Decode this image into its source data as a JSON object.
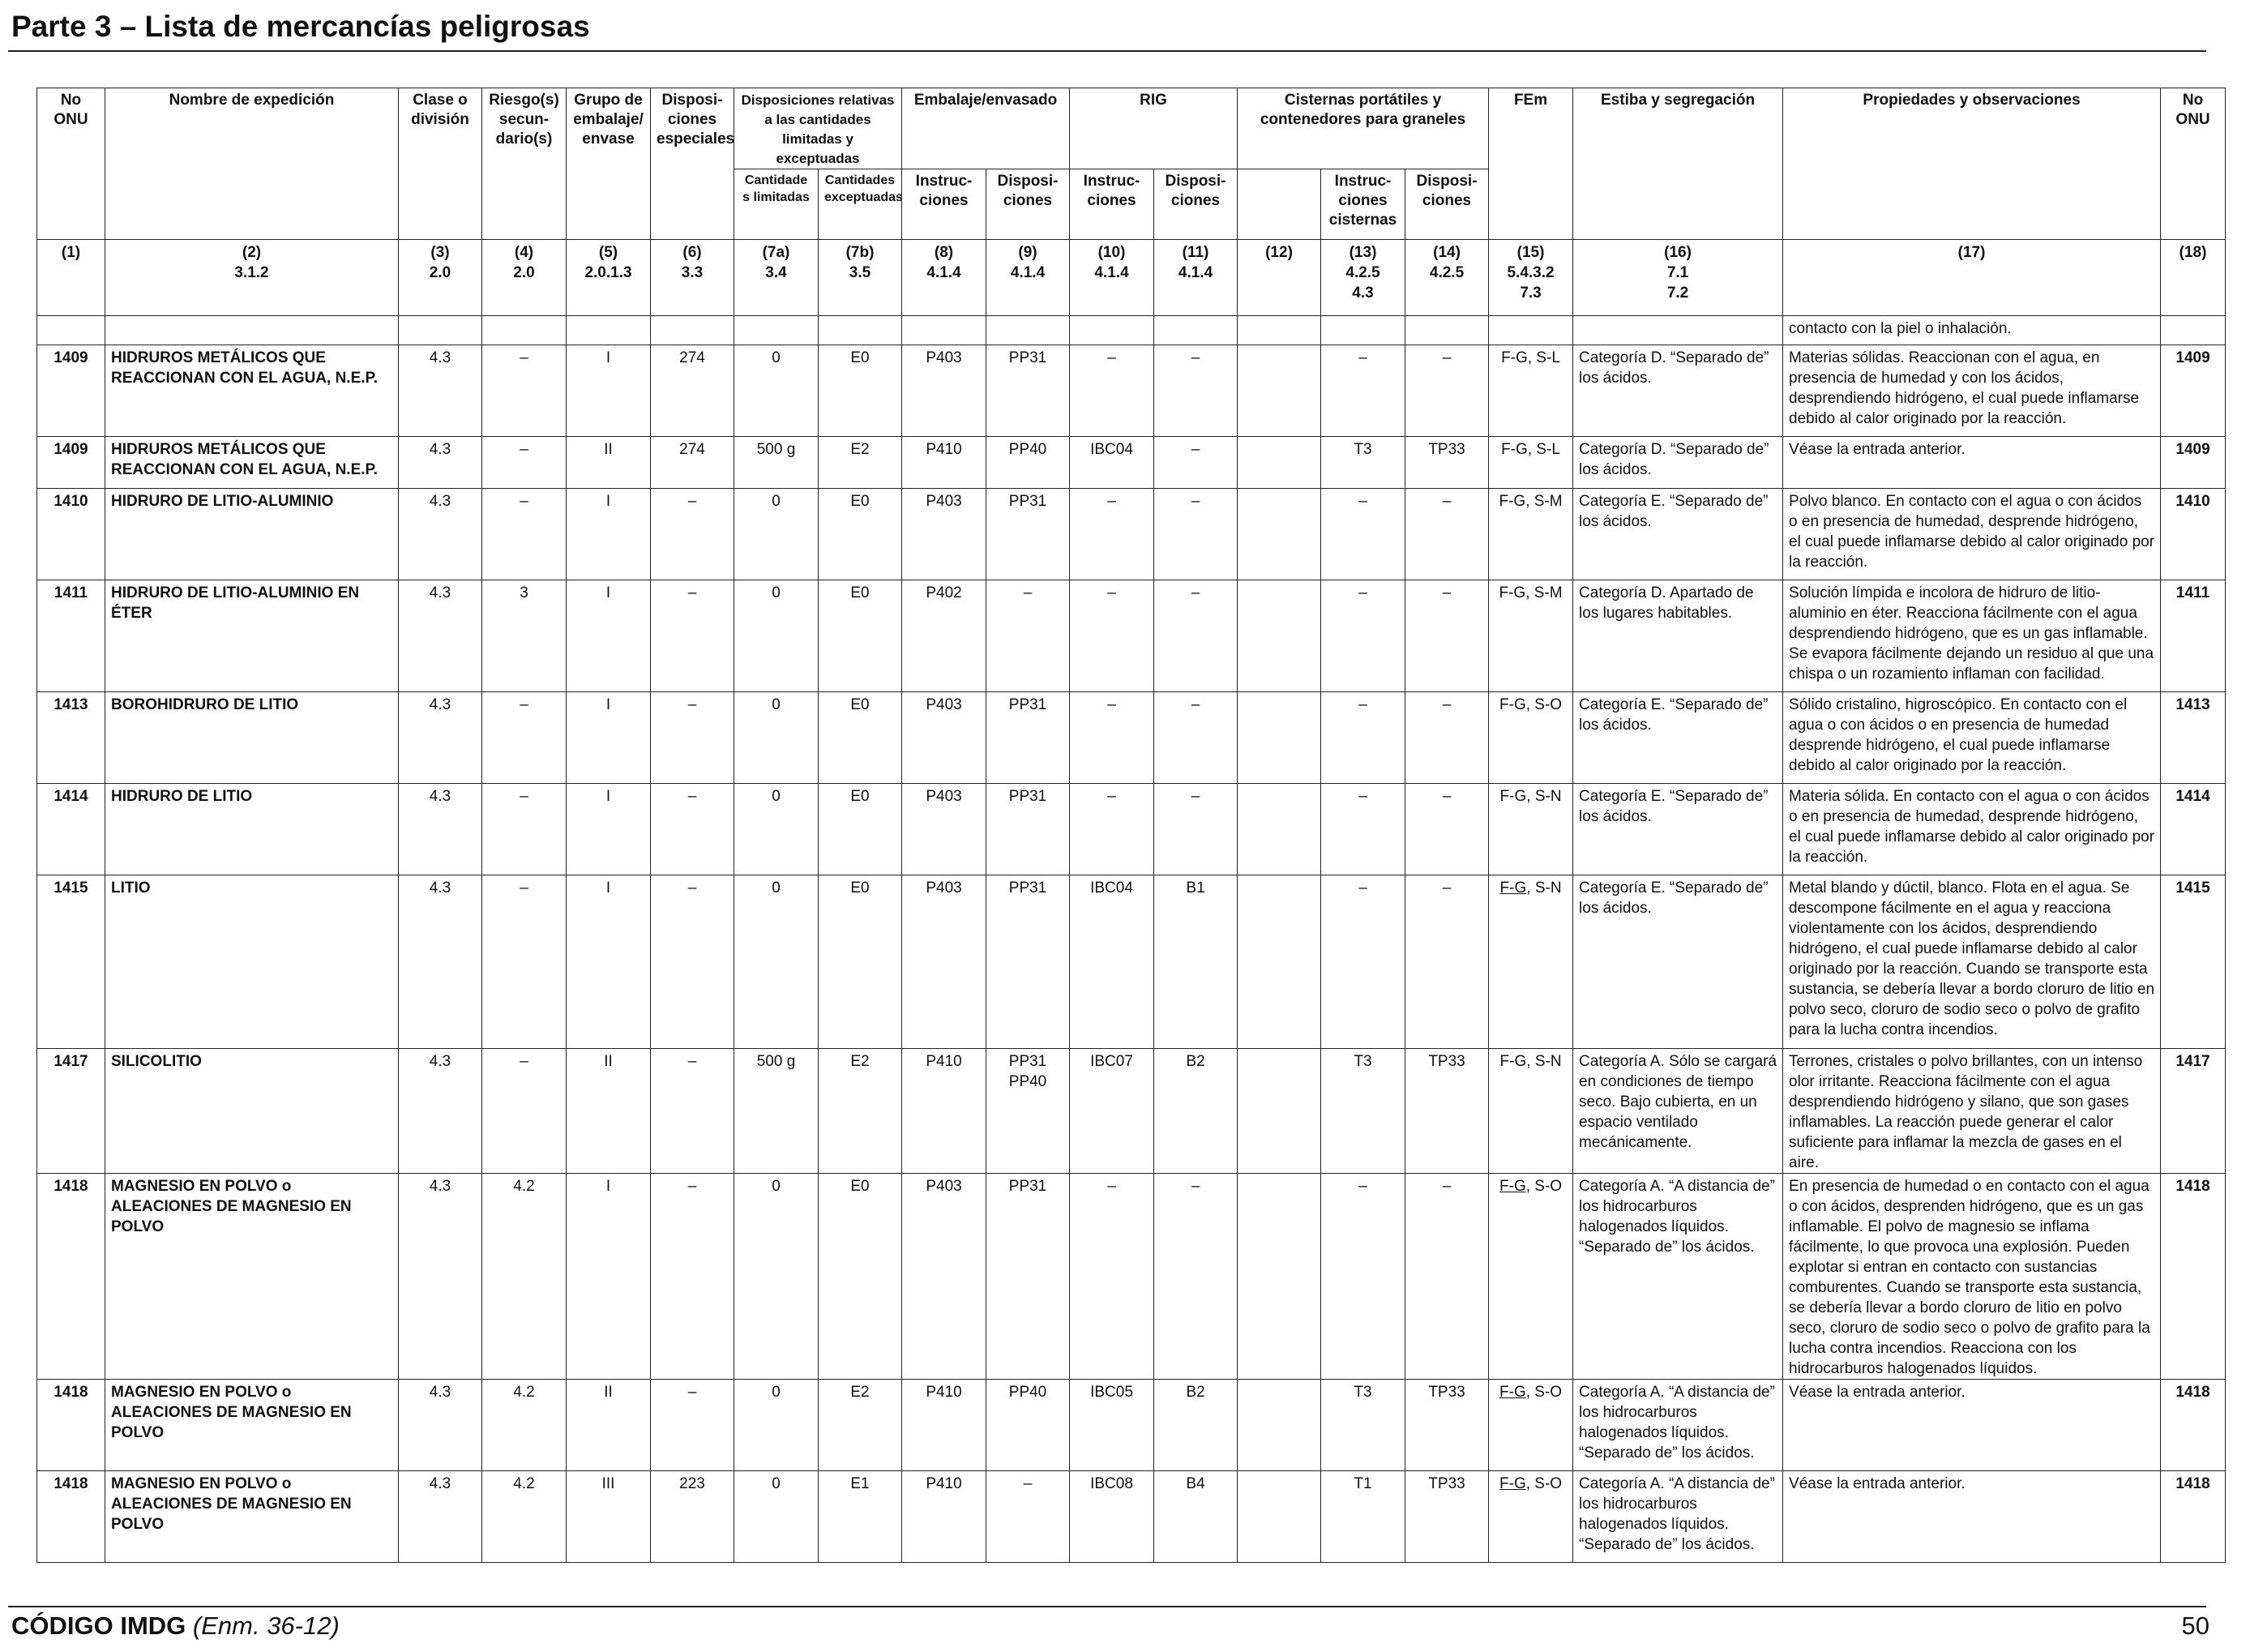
{
  "page": {
    "title": "Parte 3 – Lista de mercancías peligrosas",
    "footer_code": "CÓDIGO IMDG",
    "footer_edition": "(Enm. 36-12)",
    "page_number": "50"
  },
  "headers": {
    "no_onu": "No ONU",
    "nombre": "Nombre de expedición",
    "clase": "Clase o división",
    "riesgo": "Riesgo(s) secun-dario(s)",
    "grupo": "Grupo de embalaje/ envase",
    "disp_esp": "Disposi-ciones especiales",
    "disp_rel": "Disposiciones relativas a las cantidades limitadas y exceptuadas",
    "cant_lim": "Cantidade s limitadas",
    "cant_exc": "Cantidades exceptuadas",
    "embalaje": "Embalaje/envasado",
    "emb_instr": "Instruc-ciones",
    "emb_disp": "Disposi-ciones",
    "rig": "RIG",
    "rig_instr": "Instruc-ciones",
    "rig_disp": "Disposi-ciones",
    "cisternas": "Cisternas portátiles y contenedores para graneles",
    "cis_instr": "Instruc-ciones cisternas",
    "cis_disp": "Disposi-ciones",
    "fem": "FEm",
    "estiba": "Estiba y segregación",
    "propiedades": "Propiedades y observaciones",
    "no_onu_r": "No ONU"
  },
  "colnums": [
    {
      "n": "(1)",
      "r": ""
    },
    {
      "n": "(2)",
      "r": "3.1.2"
    },
    {
      "n": "(3)",
      "r": "2.0"
    },
    {
      "n": "(4)",
      "r": "2.0"
    },
    {
      "n": "(5)",
      "r": "2.0.1.3"
    },
    {
      "n": "(6)",
      "r": "3.3"
    },
    {
      "n": "(7a)",
      "r": "3.4"
    },
    {
      "n": "(7b)",
      "r": "3.5"
    },
    {
      "n": "(8)",
      "r": "4.1.4"
    },
    {
      "n": "(9)",
      "r": "4.1.4"
    },
    {
      "n": "(10)",
      "r": "4.1.4"
    },
    {
      "n": "(11)",
      "r": "4.1.4"
    },
    {
      "n": "(12)",
      "r": ""
    },
    {
      "n": "(13)",
      "r": "4.2.5 4.3"
    },
    {
      "n": "(14)",
      "r": "4.2.5"
    },
    {
      "n": "(15)",
      "r": "5.4.3.2 7.3"
    },
    {
      "n": "(16)",
      "r": "7.1 7.2"
    },
    {
      "n": "(17)",
      "r": ""
    },
    {
      "n": "(18)",
      "r": ""
    }
  ],
  "continuation": "contacto con la piel o inhalación.",
  "rows": [
    {
      "un": "1409",
      "name": "HIDRUROS METÁLICOS QUE REACCIONAN CON EL AGUA, N.E.P.",
      "clase": "4.3",
      "riesgo": "–",
      "grupo": "I",
      "disp": "274",
      "lim": "0",
      "exc": "E0",
      "emb_i": "P403",
      "emb_d": "PP31",
      "rig_i": "–",
      "rig_d": "–",
      "c12": "",
      "cis_i": "–",
      "cis_d": "–",
      "fem_u": "",
      "fem": "F-G, S-L",
      "estiba": "Categoría D. “Separado de” los ácidos.",
      "prop": "Materias sólidas. Reaccionan con el agua, en presencia de humedad y con los ácidos, desprendiendo hidrógeno, el cual puede inflamarse debido al calor originado por la reacción."
    },
    {
      "un": "1409",
      "name": "HIDRUROS METÁLICOS QUE REACCIONAN CON EL AGUA, N.E.P.",
      "clase": "4.3",
      "riesgo": "–",
      "grupo": "II",
      "disp": "274",
      "lim": "500 g",
      "exc": "E2",
      "emb_i": "P410",
      "emb_d": "PP40",
      "rig_i": "IBC04",
      "rig_d": "–",
      "c12": "",
      "cis_i": "T3",
      "cis_d": "TP33",
      "fem_u": "",
      "fem": "F-G, S-L",
      "estiba": "Categoría D. “Separado de” los ácidos.",
      "prop": "Véase la entrada anterior."
    },
    {
      "un": "1410",
      "name": "HIDRURO DE LITIO-ALUMINIO",
      "clase": "4.3",
      "riesgo": "–",
      "grupo": "I",
      "disp": "–",
      "lim": "0",
      "exc": "E0",
      "emb_i": "P403",
      "emb_d": "PP31",
      "rig_i": "–",
      "rig_d": "–",
      "c12": "",
      "cis_i": "–",
      "cis_d": "–",
      "fem_u": "",
      "fem": "F-G, S-M",
      "estiba": "Categoría E. “Separado de” los ácidos.",
      "prop": "Polvo blanco. En contacto con el agua o con ácidos o en presencia de humedad, desprende hidrógeno, el cual puede inflamarse debido al calor originado por la reacción."
    },
    {
      "un": "1411",
      "name": "HIDRURO DE LITIO-ALUMINIO EN ÉTER",
      "clase": "4.3",
      "riesgo": "3",
      "grupo": "I",
      "disp": "–",
      "lim": "0",
      "exc": "E0",
      "emb_i": "P402",
      "emb_d": "–",
      "rig_i": "–",
      "rig_d": "–",
      "c12": "",
      "cis_i": "–",
      "cis_d": "–",
      "fem_u": "",
      "fem": "F-G, S-M",
      "estiba": "Categoría D. Apartado de los lugares habitables.",
      "prop": "Solución límpida e incolora de hidruro de litio-aluminio en éter. Reacciona fácilmente con el agua desprendiendo hidrógeno, que es un gas inflamable. Se evapora fácilmente dejando un residuo al que una chispa o un rozamiento inflaman con facilidad."
    },
    {
      "un": "1413",
      "name": "BOROHIDRURO DE LITIO",
      "clase": "4.3",
      "riesgo": "–",
      "grupo": "I",
      "disp": "–",
      "lim": "0",
      "exc": "E0",
      "emb_i": "P403",
      "emb_d": "PP31",
      "rig_i": "–",
      "rig_d": "–",
      "c12": "",
      "cis_i": "–",
      "cis_d": "–",
      "fem_u": "",
      "fem": "F-G, S-O",
      "estiba": "Categoría E. “Separado de” los ácidos.",
      "prop": "Sólido cristalino, higroscópico. En contacto con el agua o con ácidos o en presencia de humedad desprende hidrógeno, el cual puede inflamarse debido al calor originado por la reacción."
    },
    {
      "un": "1414",
      "name": "HIDRURO DE LITIO",
      "clase": "4.3",
      "riesgo": "–",
      "grupo": "I",
      "disp": "–",
      "lim": "0",
      "exc": "E0",
      "emb_i": "P403",
      "emb_d": "PP31",
      "rig_i": "–",
      "rig_d": "–",
      "c12": "",
      "cis_i": "–",
      "cis_d": "–",
      "fem_u": "",
      "fem": "F-G, S-N",
      "estiba": "Categoría E. “Separado de” los ácidos.",
      "prop": "Materia sólida. En contacto con el agua o con ácidos o en presencia de humedad, desprende hidrógeno, el cual puede inflamarse debido al calor originado por la reacción."
    },
    {
      "un": "1415",
      "name": "LITIO",
      "clase": "4.3",
      "riesgo": "–",
      "grupo": "I",
      "disp": "–",
      "lim": "0",
      "exc": "E0",
      "emb_i": "P403",
      "emb_d": "PP31",
      "rig_i": "IBC04",
      "rig_d": "B1",
      "c12": "",
      "cis_i": "–",
      "cis_d": "–",
      "fem_u": "F-G",
      "fem": ", S-N",
      "estiba": "Categoría E. “Separado de” los ácidos.",
      "prop": "Metal blando y dúctil, blanco. Flota en el agua. Se descompone fácilmente en el agua y reacciona violentamente con los ácidos, desprendiendo hidrógeno, el cual puede inflamarse debido al calor originado por la reacción. Cuando se transporte esta sustancia, se debería llevar a bordo cloruro de litio en polvo seco, cloruro de sodio seco o polvo de grafito para la lucha contra incendios."
    },
    {
      "un": "1417",
      "name": "SILICOLITIO",
      "clase": "4.3",
      "riesgo": "–",
      "grupo": "II",
      "disp": "–",
      "lim": "500 g",
      "exc": "E2",
      "emb_i": "P410",
      "emb_d": "PP31 PP40",
      "rig_i": "IBC07",
      "rig_d": "B2",
      "c12": "",
      "cis_i": "T3",
      "cis_d": "TP33",
      "fem_u": "",
      "fem": "F-G, S-N",
      "estiba": "Categoría A. Sólo se cargará en condiciones de tiempo seco. Bajo cubierta, en un espacio ventilado mecánicamente.",
      "prop": "Terrones, cristales o polvo brillantes, con un intenso olor irritante. Reacciona fácilmente con el agua desprendiendo hidrógeno y silano, que son gases inflamables. La reacción puede generar el calor suficiente para inflamar la mezcla de gases en el aire."
    },
    {
      "un": "1418",
      "name": "MAGNESIO EN POLVO o ALEACIONES DE MAGNESIO EN POLVO",
      "clase": "4.3",
      "riesgo": "4.2",
      "grupo": "I",
      "disp": "–",
      "lim": "0",
      "exc": "E0",
      "emb_i": "P403",
      "emb_d": "PP31",
      "rig_i": "–",
      "rig_d": "–",
      "c12": "",
      "cis_i": "–",
      "cis_d": "–",
      "fem_u": "F-G",
      "fem": ", S-O",
      "estiba": "Categoría A. “A distancia de” los hidrocarburos halogenados líquidos. “Separado de” los ácidos.",
      "prop": "En presencia de humedad o en contacto con el agua o con ácidos, desprenden hidrógeno, que es un gas inflamable. El polvo de magnesio se inflama fácilmente, lo que provoca una explosión. Pueden explotar si entran en contacto con sustancias comburentes. Cuando se transporte esta sustancia, se debería llevar a bordo cloruro de litio en polvo seco, cloruro de sodio seco o polvo de grafito para la lucha contra incendios. Reacciona con los hidrocarburos halogenados líquidos."
    },
    {
      "un": "1418",
      "name": "MAGNESIO EN POLVO o ALEACIONES DE MAGNESIO EN POLVO",
      "clase": "4.3",
      "riesgo": "4.2",
      "grupo": "II",
      "disp": "–",
      "lim": "0",
      "exc": "E2",
      "emb_i": "P410",
      "emb_d": "PP40",
      "rig_i": "IBC05",
      "rig_d": "B2",
      "c12": "",
      "cis_i": "T3",
      "cis_d": "TP33",
      "fem_u": "F-G",
      "fem": ", S-O",
      "estiba": "Categoría A. “A distancia de” los hidrocarburos halogenados líquidos. “Separado de” los ácidos.",
      "prop": "Véase la entrada anterior."
    },
    {
      "un": "1418",
      "name": "MAGNESIO EN POLVO o ALEACIONES DE MAGNESIO EN POLVO",
      "clase": "4.3",
      "riesgo": "4.2",
      "grupo": "III",
      "disp": "223",
      "lim": "0",
      "exc": "E1",
      "emb_i": "P410",
      "emb_d": "–",
      "rig_i": "IBC08",
      "rig_d": "B4",
      "c12": "",
      "cis_i": "T1",
      "cis_d": "TP33",
      "fem_u": "F-G",
      "fem": ", S-O",
      "estiba": "Categoría A. “A distancia de” los hidrocarburos halogenados líquidos. “Separado de” los ácidos.",
      "prop": "Véase la entrada anterior."
    }
  ]
}
